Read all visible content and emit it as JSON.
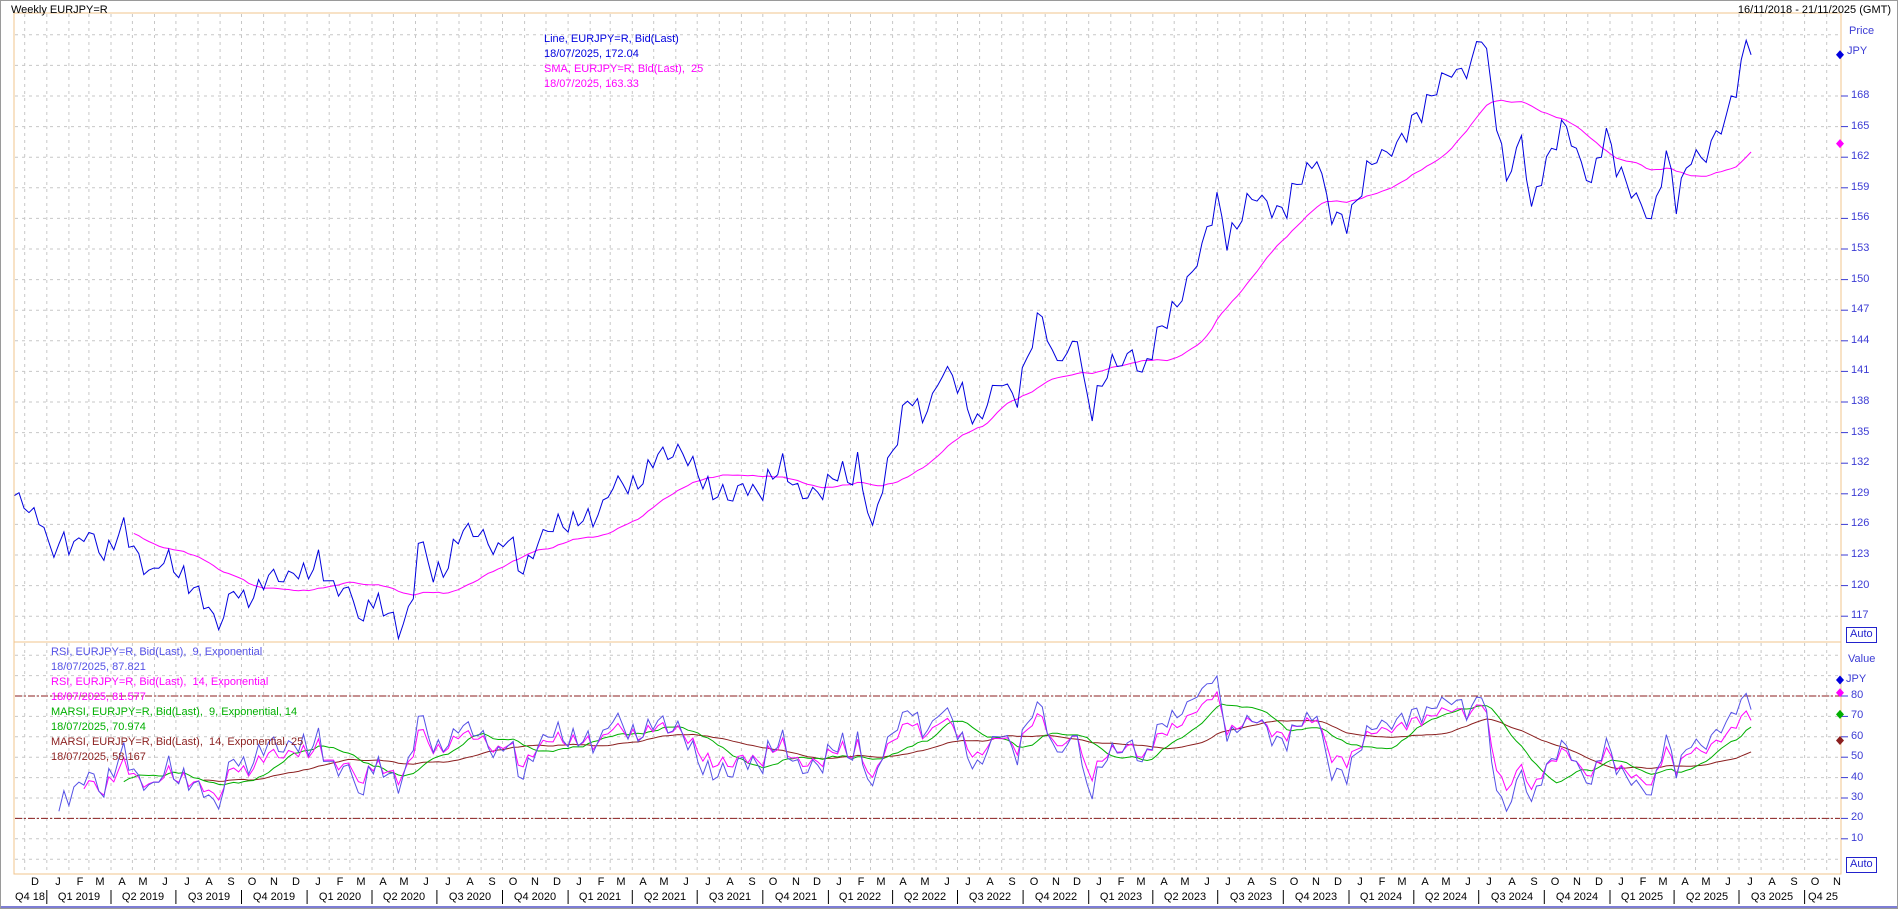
{
  "window": {
    "title": "Weekly EURJPY=R",
    "date_range": "16/11/2018 - 21/11/2025 (GMT)"
  },
  "colors": {
    "price_line": "#0000DE",
    "sma": "#FF00FF",
    "rsi9": "#5551E6",
    "rsi14": "#FF00FF",
    "marsi9": "#00AF00",
    "marsi14": "#8B1F1F",
    "level_line": "#8B1F1F",
    "grid": "#C7C7C7",
    "panel_border": "#F2C48C",
    "axis_text": "#3B3BD4",
    "auto_button": "#2222CC"
  },
  "main_panel": {
    "axis_title": "Price",
    "currency": "JPY",
    "auto_label": "Auto",
    "price_ticks": [
      168,
      165,
      162,
      159,
      156,
      153,
      150,
      147,
      144,
      141,
      138,
      135,
      132,
      129,
      126,
      123,
      120,
      117
    ],
    "legend": [
      {
        "text": "Line, EURJPY=R, Bid(Last)",
        "color": "#0000DE"
      },
      {
        "text": "18/07/2025, 172.04",
        "color": "#0000DE"
      },
      {
        "text": "SMA, EURJPY=R, Bid(Last),  25",
        "color": "#FF00FF"
      },
      {
        "text": "18/07/2025, 163.33",
        "color": "#FF00FF"
      }
    ],
    "markers": [
      {
        "name": "line-last-value",
        "value": 172.04,
        "color": "#0000DE"
      },
      {
        "name": "sma-last-value",
        "value": 163.33,
        "color": "#FF00FF"
      }
    ]
  },
  "rsi_panel": {
    "axis_title": "Value",
    "currency": "JPY",
    "auto_label": "Auto",
    "value_ticks": [
      80,
      70,
      60,
      50,
      40,
      30,
      20,
      10
    ],
    "level_lines": [
      80,
      20
    ],
    "legend": [
      {
        "text": "RSI, EURJPY=R, Bid(Last),  9, Exponential",
        "color": "#5551E6"
      },
      {
        "text": "18/07/2025, 87.821",
        "color": "#5551E6"
      },
      {
        "text": "RSI, EURJPY=R, Bid(Last),  14, Exponential",
        "color": "#FF00FF"
      },
      {
        "text": "18/07/2025, 81.577",
        "color": "#FF00FF"
      },
      {
        "text": "MARSI, EURJPY=R, Bid(Last),  9, Exponential, 14",
        "color": "#00AF00"
      },
      {
        "text": "18/07/2025, 70.974",
        "color": "#00AF00"
      },
      {
        "text": "MARSI, EURJPY=R, Bid(Last),  14, Exponential, 25",
        "color": "#8B1F1F"
      },
      {
        "text": "18/07/2025, 58.167",
        "color": "#8B1F1F"
      }
    ],
    "markers": [
      {
        "name": "rsi9-last-value",
        "value": 87.821,
        "color": "#0000DE"
      },
      {
        "name": "rsi14-last-value",
        "value": 81.577,
        "color": "#FF00FF"
      },
      {
        "name": "marsi9-last-value",
        "value": 70.974,
        "color": "#00AF00"
      },
      {
        "name": "marsi14-last-value",
        "value": 58.167,
        "color": "#8B1F1F"
      }
    ]
  },
  "x_axis": {
    "months": [
      "D",
      "J",
      "F",
      "M",
      "A",
      "M",
      "J",
      "J",
      "A",
      "S",
      "O",
      "N",
      "D",
      "J",
      "F",
      "M",
      "A",
      "M",
      "J",
      "J",
      "A",
      "S",
      "O",
      "N",
      "D",
      "J",
      "F",
      "M",
      "A",
      "M",
      "J",
      "J",
      "A",
      "S",
      "O",
      "N",
      "D",
      "J",
      "F",
      "M",
      "A",
      "M",
      "J",
      "J",
      "A",
      "S",
      "O",
      "N",
      "D",
      "J",
      "F",
      "M",
      "A",
      "M",
      "J",
      "J",
      "A",
      "S",
      "O",
      "N",
      "D",
      "J",
      "F",
      "M",
      "A",
      "M",
      "J",
      "J",
      "A",
      "S",
      "O",
      "N",
      "D",
      "J",
      "F",
      "M",
      "A",
      "M",
      "J",
      "J",
      "A",
      "S",
      "O",
      "N"
    ],
    "quarters": [
      "Q4 18",
      "Q1 2019",
      "Q2 2019",
      "Q3 2019",
      "Q4 2019",
      "Q1 2020",
      "Q2 2020",
      "Q3 2020",
      "Q4 2020",
      "Q1 2021",
      "Q2 2021",
      "Q3 2021",
      "Q4 2021",
      "Q1 2022",
      "Q2 2022",
      "Q3 2022",
      "Q4 2022",
      "Q1 2023",
      "Q2 2023",
      "Q3 2023",
      "Q4 2023",
      "Q1 2024",
      "Q2 2024",
      "Q3 2024",
      "Q4 2024",
      "Q1 2025",
      "Q2 2025",
      "Q3 2025",
      "Q4 25"
    ]
  },
  "chart_data": {
    "type": "line",
    "title": "Weekly EURJPY=R",
    "x_start": "2018-11-16",
    "x_end": "2025-11-21",
    "data_end": "2025-07-18",
    "interval": "weekly",
    "ylim_price": [
      114.5,
      176.1
    ],
    "ylim_value": [
      -6,
      106
    ],
    "grid": true,
    "series": [
      {
        "name": "Line, EURJPY=R, Bid(Last)",
        "last_date": "18/07/2025",
        "last_value": 172.04
      },
      {
        "name": "SMA 25",
        "last_date": "18/07/2025",
        "last_value": 163.33
      },
      {
        "name": "RSI 9 Exponential",
        "last_date": "18/07/2025",
        "last_value": 87.821
      },
      {
        "name": "RSI 14 Exponential",
        "last_date": "18/07/2025",
        "last_value": 81.577
      },
      {
        "name": "MARSI 9 Exponential 14",
        "last_date": "18/07/2025",
        "last_value": 70.974
      },
      {
        "name": "MARSI 14 Exponential 25",
        "last_date": "18/07/2025",
        "last_value": 58.167
      }
    ],
    "price_anchors": [
      [
        "2018-11-16",
        128.8
      ],
      [
        "2018-11-30",
        128.3
      ],
      [
        "2018-12-14",
        127.4
      ],
      [
        "2018-12-28",
        125.7
      ],
      [
        "2019-01-04",
        122.6
      ],
      [
        "2019-01-25",
        124.8
      ],
      [
        "2019-02-15",
        124.1
      ],
      [
        "2019-03-01",
        124.7
      ],
      [
        "2019-03-22",
        123.4
      ],
      [
        "2019-04-17",
        125.3
      ],
      [
        "2019-05-10",
        122.9
      ],
      [
        "2019-05-31",
        121.2
      ],
      [
        "2019-06-21",
        122.4
      ],
      [
        "2019-07-12",
        121.3
      ],
      [
        "2019-08-02",
        118.6
      ],
      [
        "2019-08-30",
        116.6
      ],
      [
        "2019-09-20",
        119.4
      ],
      [
        "2019-10-04",
        118.1
      ],
      [
        "2019-11-01",
        120.8
      ],
      [
        "2019-11-29",
        120.3
      ],
      [
        "2019-12-13",
        122.0
      ],
      [
        "2020-01-03",
        120.9
      ],
      [
        "2020-01-17",
        122.0
      ],
      [
        "2020-02-07",
        120.3
      ],
      [
        "2020-02-21",
        119.6
      ],
      [
        "2020-03-06",
        118.2
      ],
      [
        "2020-03-20",
        115.9
      ],
      [
        "2020-03-27",
        119.5
      ],
      [
        "2020-04-24",
        116.9
      ],
      [
        "2020-05-08",
        115.2
      ],
      [
        "2020-05-29",
        119.4
      ],
      [
        "2020-06-05",
        124.4
      ],
      [
        "2020-06-26",
        120.7
      ],
      [
        "2020-07-17",
        122.6
      ],
      [
        "2020-07-31",
        124.7
      ],
      [
        "2020-09-04",
        125.5
      ],
      [
        "2020-09-25",
        122.8
      ],
      [
        "2020-10-09",
        124.6
      ],
      [
        "2020-10-30",
        121.8
      ],
      [
        "2020-11-20",
        123.7
      ],
      [
        "2020-12-17",
        126.8
      ],
      [
        "2021-01-08",
        125.7
      ],
      [
        "2021-02-05",
        126.9
      ],
      [
        "2021-03-05",
        129.4
      ],
      [
        "2021-04-02",
        130.2
      ],
      [
        "2021-04-23",
        130.9
      ],
      [
        "2021-05-07",
        132.6
      ],
      [
        "2021-06-04",
        133.7
      ],
      [
        "2021-06-25",
        131.2
      ],
      [
        "2021-07-23",
        129.6
      ],
      [
        "2021-08-20",
        128.0
      ],
      [
        "2021-09-03",
        130.4
      ],
      [
        "2021-10-01",
        128.8
      ],
      [
        "2021-10-29",
        132.4
      ],
      [
        "2021-11-26",
        128.2
      ],
      [
        "2021-12-10",
        128.9
      ],
      [
        "2022-01-07",
        130.8
      ],
      [
        "2022-02-04",
        130.2
      ],
      [
        "2022-02-11",
        132.8
      ],
      [
        "2022-03-04",
        125.3
      ],
      [
        "2022-04-01",
        133.5
      ],
      [
        "2022-04-22",
        138.7
      ],
      [
        "2022-05-13",
        136.0
      ],
      [
        "2022-06-10",
        141.5
      ],
      [
        "2022-07-01",
        139.3
      ],
      [
        "2022-07-29",
        136.3
      ],
      [
        "2022-09-02",
        140.0
      ],
      [
        "2022-09-23",
        138.8
      ],
      [
        "2022-10-28",
        146.9
      ],
      [
        "2022-11-11",
        142.9
      ],
      [
        "2022-12-02",
        141.9
      ],
      [
        "2022-12-16",
        144.6
      ],
      [
        "2022-12-23",
        140.8
      ],
      [
        "2023-01-06",
        137.6
      ],
      [
        "2023-02-03",
        141.4
      ],
      [
        "2023-03-03",
        143.3
      ],
      [
        "2023-03-17",
        139.9
      ],
      [
        "2023-04-14",
        146.1
      ],
      [
        "2023-05-12",
        147.8
      ],
      [
        "2023-06-16",
        155.2
      ],
      [
        "2023-06-30",
        157.3
      ],
      [
        "2023-07-14",
        153.6
      ],
      [
        "2023-08-11",
        157.9
      ],
      [
        "2023-09-08",
        157.3
      ],
      [
        "2023-10-06",
        157.1
      ],
      [
        "2023-11-17",
        162.5
      ],
      [
        "2023-12-08",
        155.6
      ],
      [
        "2023-12-29",
        155.9
      ],
      [
        "2024-01-26",
        160.3
      ],
      [
        "2024-02-23",
        162.9
      ],
      [
        "2024-03-22",
        164.0
      ],
      [
        "2024-04-26",
        168.6
      ],
      [
        "2024-05-24",
        169.9
      ],
      [
        "2024-06-21",
        171.5
      ],
      [
        "2024-07-05",
        174.0
      ],
      [
        "2024-07-26",
        165.7
      ],
      [
        "2024-08-09",
        160.3
      ],
      [
        "2024-08-30",
        163.3
      ],
      [
        "2024-09-13",
        156.8
      ],
      [
        "2024-09-27",
        160.9
      ],
      [
        "2024-10-31",
        164.9
      ],
      [
        "2024-11-22",
        161.9
      ],
      [
        "2024-12-06",
        159.1
      ],
      [
        "2024-12-27",
        164.2
      ],
      [
        "2025-01-17",
        160.6
      ],
      [
        "2025-02-07",
        157.3
      ],
      [
        "2025-02-28",
        156.2
      ],
      [
        "2025-03-21",
        162.2
      ],
      [
        "2025-04-04",
        157.1
      ],
      [
        "2025-04-25",
        162.8
      ],
      [
        "2025-05-16",
        161.7
      ],
      [
        "2025-06-06",
        164.9
      ],
      [
        "2025-06-27",
        169.3
      ],
      [
        "2025-07-11",
        172.5
      ],
      [
        "2025-07-18",
        172.04
      ]
    ],
    "indicators": {
      "sma_period": 25,
      "rsi_fast": 9,
      "rsi_slow": 14,
      "marsi_fast_ma": 14,
      "marsi_slow_ma": 25
    }
  }
}
